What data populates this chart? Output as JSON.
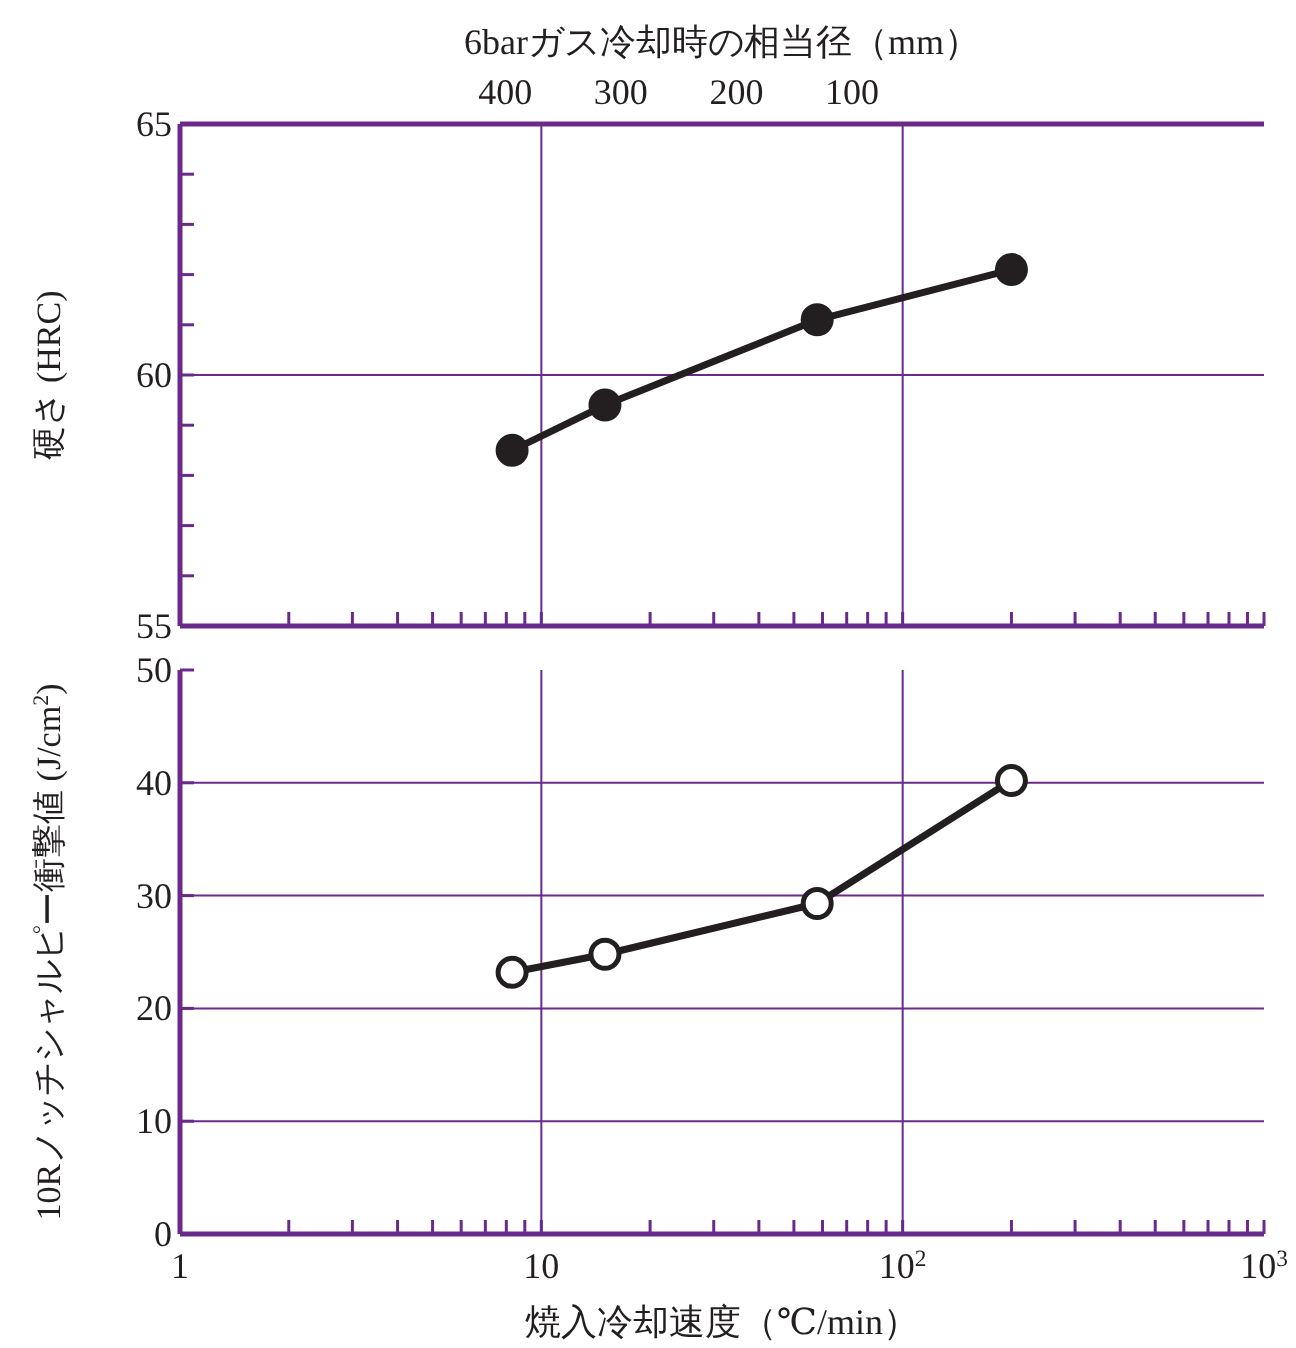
{
  "chart_data": [
    {
      "type": "line",
      "ylabel": "硬さ (HRC)",
      "x2label": "6barガス冷却時の相当径（mm）",
      "log": "x",
      "grid": true,
      "marker": "circle",
      "line_style": "solid",
      "tick_labels": "y",
      "xlim": [
        1,
        1000
      ],
      "ylim": [
        55,
        65
      ],
      "xticks": [
        {
          "value": 1,
          "label": null
        },
        {
          "value": 2,
          "label": null
        },
        {
          "value": 3,
          "label": null
        },
        {
          "value": 4,
          "label": null
        },
        {
          "value": 5,
          "label": null
        },
        {
          "value": 6,
          "label": null
        },
        {
          "value": 7,
          "label": null
        },
        {
          "value": 8,
          "label": null
        },
        {
          "value": 9,
          "label": null
        },
        {
          "value": 10,
          "label": null
        },
        {
          "value": 20,
          "label": null
        },
        {
          "value": 30,
          "label": null
        },
        {
          "value": 40,
          "label": null
        },
        {
          "value": 50,
          "label": null
        },
        {
          "value": 60,
          "label": null
        },
        {
          "value": 70,
          "label": null
        },
        {
          "value": 80,
          "label": null
        },
        {
          "value": 90,
          "label": null
        },
        {
          "value": 100,
          "label": null
        },
        {
          "value": 200,
          "label": null
        },
        {
          "value": 300,
          "label": null
        },
        {
          "value": 400,
          "label": null
        },
        {
          "value": 500,
          "label": null
        },
        {
          "value": 600,
          "label": null
        },
        {
          "value": 700,
          "label": null
        },
        {
          "value": 800,
          "label": null
        },
        {
          "value": 900,
          "label": null
        },
        {
          "value": 1000,
          "label": null
        }
      ],
      "yticks": [
        55,
        {
          "value": 56,
          "label": null
        },
        {
          "value": 57,
          "label": null
        },
        {
          "value": 58,
          "label": null
        },
        {
          "value": 59,
          "label": null
        },
        60,
        {
          "value": 61,
          "label": null
        },
        {
          "value": 62,
          "label": null
        },
        {
          "value": 63,
          "label": null
        },
        {
          "value": 64,
          "label": null
        },
        65
      ],
      "annotations": [
        "400",
        "300",
        "200",
        "100"
      ],
      "x": [
        8.3,
        15,
        58,
        200
      ],
      "series": [
        {
          "color": "#231f20",
          "values": [
            58.5,
            59.4,
            61.1,
            62.1
          ]
        }
      ]
    },
    {
      "type": "line",
      "ylabel": "10Rノッチシャルピー衝撃値 (J/cm$^{2}$)",
      "xlabel": "焼入冷却速度（℃/min）",
      "log": "x",
      "grid": true,
      "marker": "circle",
      "line_style": "solid",
      "xlim": [
        1,
        1000
      ],
      "ylim": [
        0,
        50
      ],
      "xticks": [
        1,
        {
          "value": 2,
          "label": null
        },
        {
          "value": 3,
          "label": null
        },
        {
          "value": 4,
          "label": null
        },
        {
          "value": 5,
          "label": null
        },
        {
          "value": 6,
          "label": null
        },
        {
          "value": 7,
          "label": null
        },
        {
          "value": 8,
          "label": null
        },
        {
          "value": 9,
          "label": null
        },
        10,
        {
          "value": 20,
          "label": null
        },
        {
          "value": 30,
          "label": null
        },
        {
          "value": 40,
          "label": null
        },
        {
          "value": 50,
          "label": null
        },
        {
          "value": 60,
          "label": null
        },
        {
          "value": 70,
          "label": null
        },
        {
          "value": 80,
          "label": null
        },
        {
          "value": 90,
          "label": null
        },
        {
          "value": 100,
          "label": "10$^{2}$"
        },
        {
          "value": 200,
          "label": null
        },
        {
          "value": 300,
          "label": null
        },
        {
          "value": 400,
          "label": null
        },
        {
          "value": 500,
          "label": null
        },
        {
          "value": 600,
          "label": null
        },
        {
          "value": 700,
          "label": null
        },
        {
          "value": 800,
          "label": null
        },
        {
          "value": 900,
          "label": null
        },
        {
          "value": 1000,
          "label": "10$^{3}$"
        }
      ],
      "yticks": [
        0,
        10,
        20,
        30,
        40,
        50
      ],
      "x": [
        8.3,
        15,
        58,
        200
      ],
      "series": [
        {
          "color": "#231f20",
          "colors": [
            "#ffffff",
            "#ffffff",
            "#ffffff",
            "#ffffff"
          ],
          "values": [
            23.2,
            24.8,
            29.3,
            40.2
          ]
        }
      ]
    }
  ]
}
